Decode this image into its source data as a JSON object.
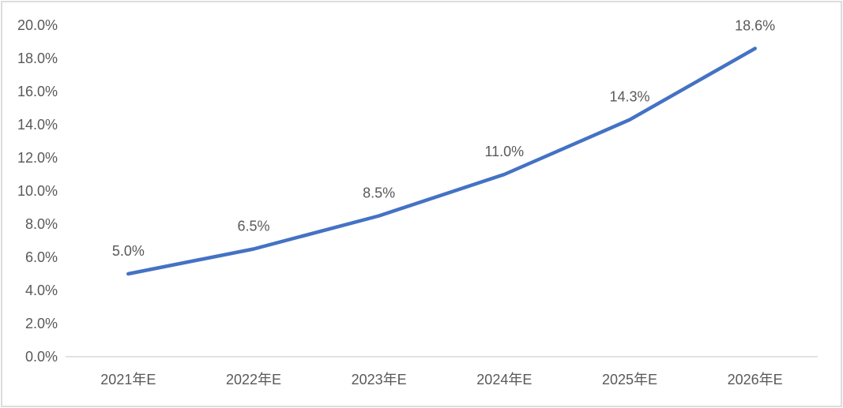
{
  "chart_data": {
    "type": "line",
    "title": "",
    "xlabel": "",
    "ylabel": "",
    "legend": "none",
    "grid": false,
    "categories": [
      "2021年E",
      "2022年E",
      "2023年E",
      "2024年E",
      "2025年E",
      "2026年E"
    ],
    "series": [
      {
        "name": "growth-rate",
        "values": [
          5.0,
          6.5,
          8.5,
          11.0,
          14.3,
          18.6
        ],
        "color": "#4472C4"
      }
    ],
    "data_labels": [
      "5.0%",
      "6.5%",
      "8.5%",
      "11.0%",
      "14.3%",
      "18.6%"
    ],
    "y_axis": {
      "range": [
        0,
        20
      ],
      "tick_values": [
        0,
        2,
        4,
        6,
        8,
        10,
        12,
        14,
        16,
        18,
        20
      ],
      "tick_labels": [
        "0.0%",
        "2.0%",
        "4.0%",
        "6.0%",
        "8.0%",
        "10.0%",
        "12.0%",
        "14.0%",
        "16.0%",
        "18.0%",
        "20.0%"
      ]
    },
    "colors": {
      "text": "#595959",
      "axis_line": "#D9D9D9",
      "border": "#D9D9D9",
      "background": "#FFFFFF"
    }
  }
}
